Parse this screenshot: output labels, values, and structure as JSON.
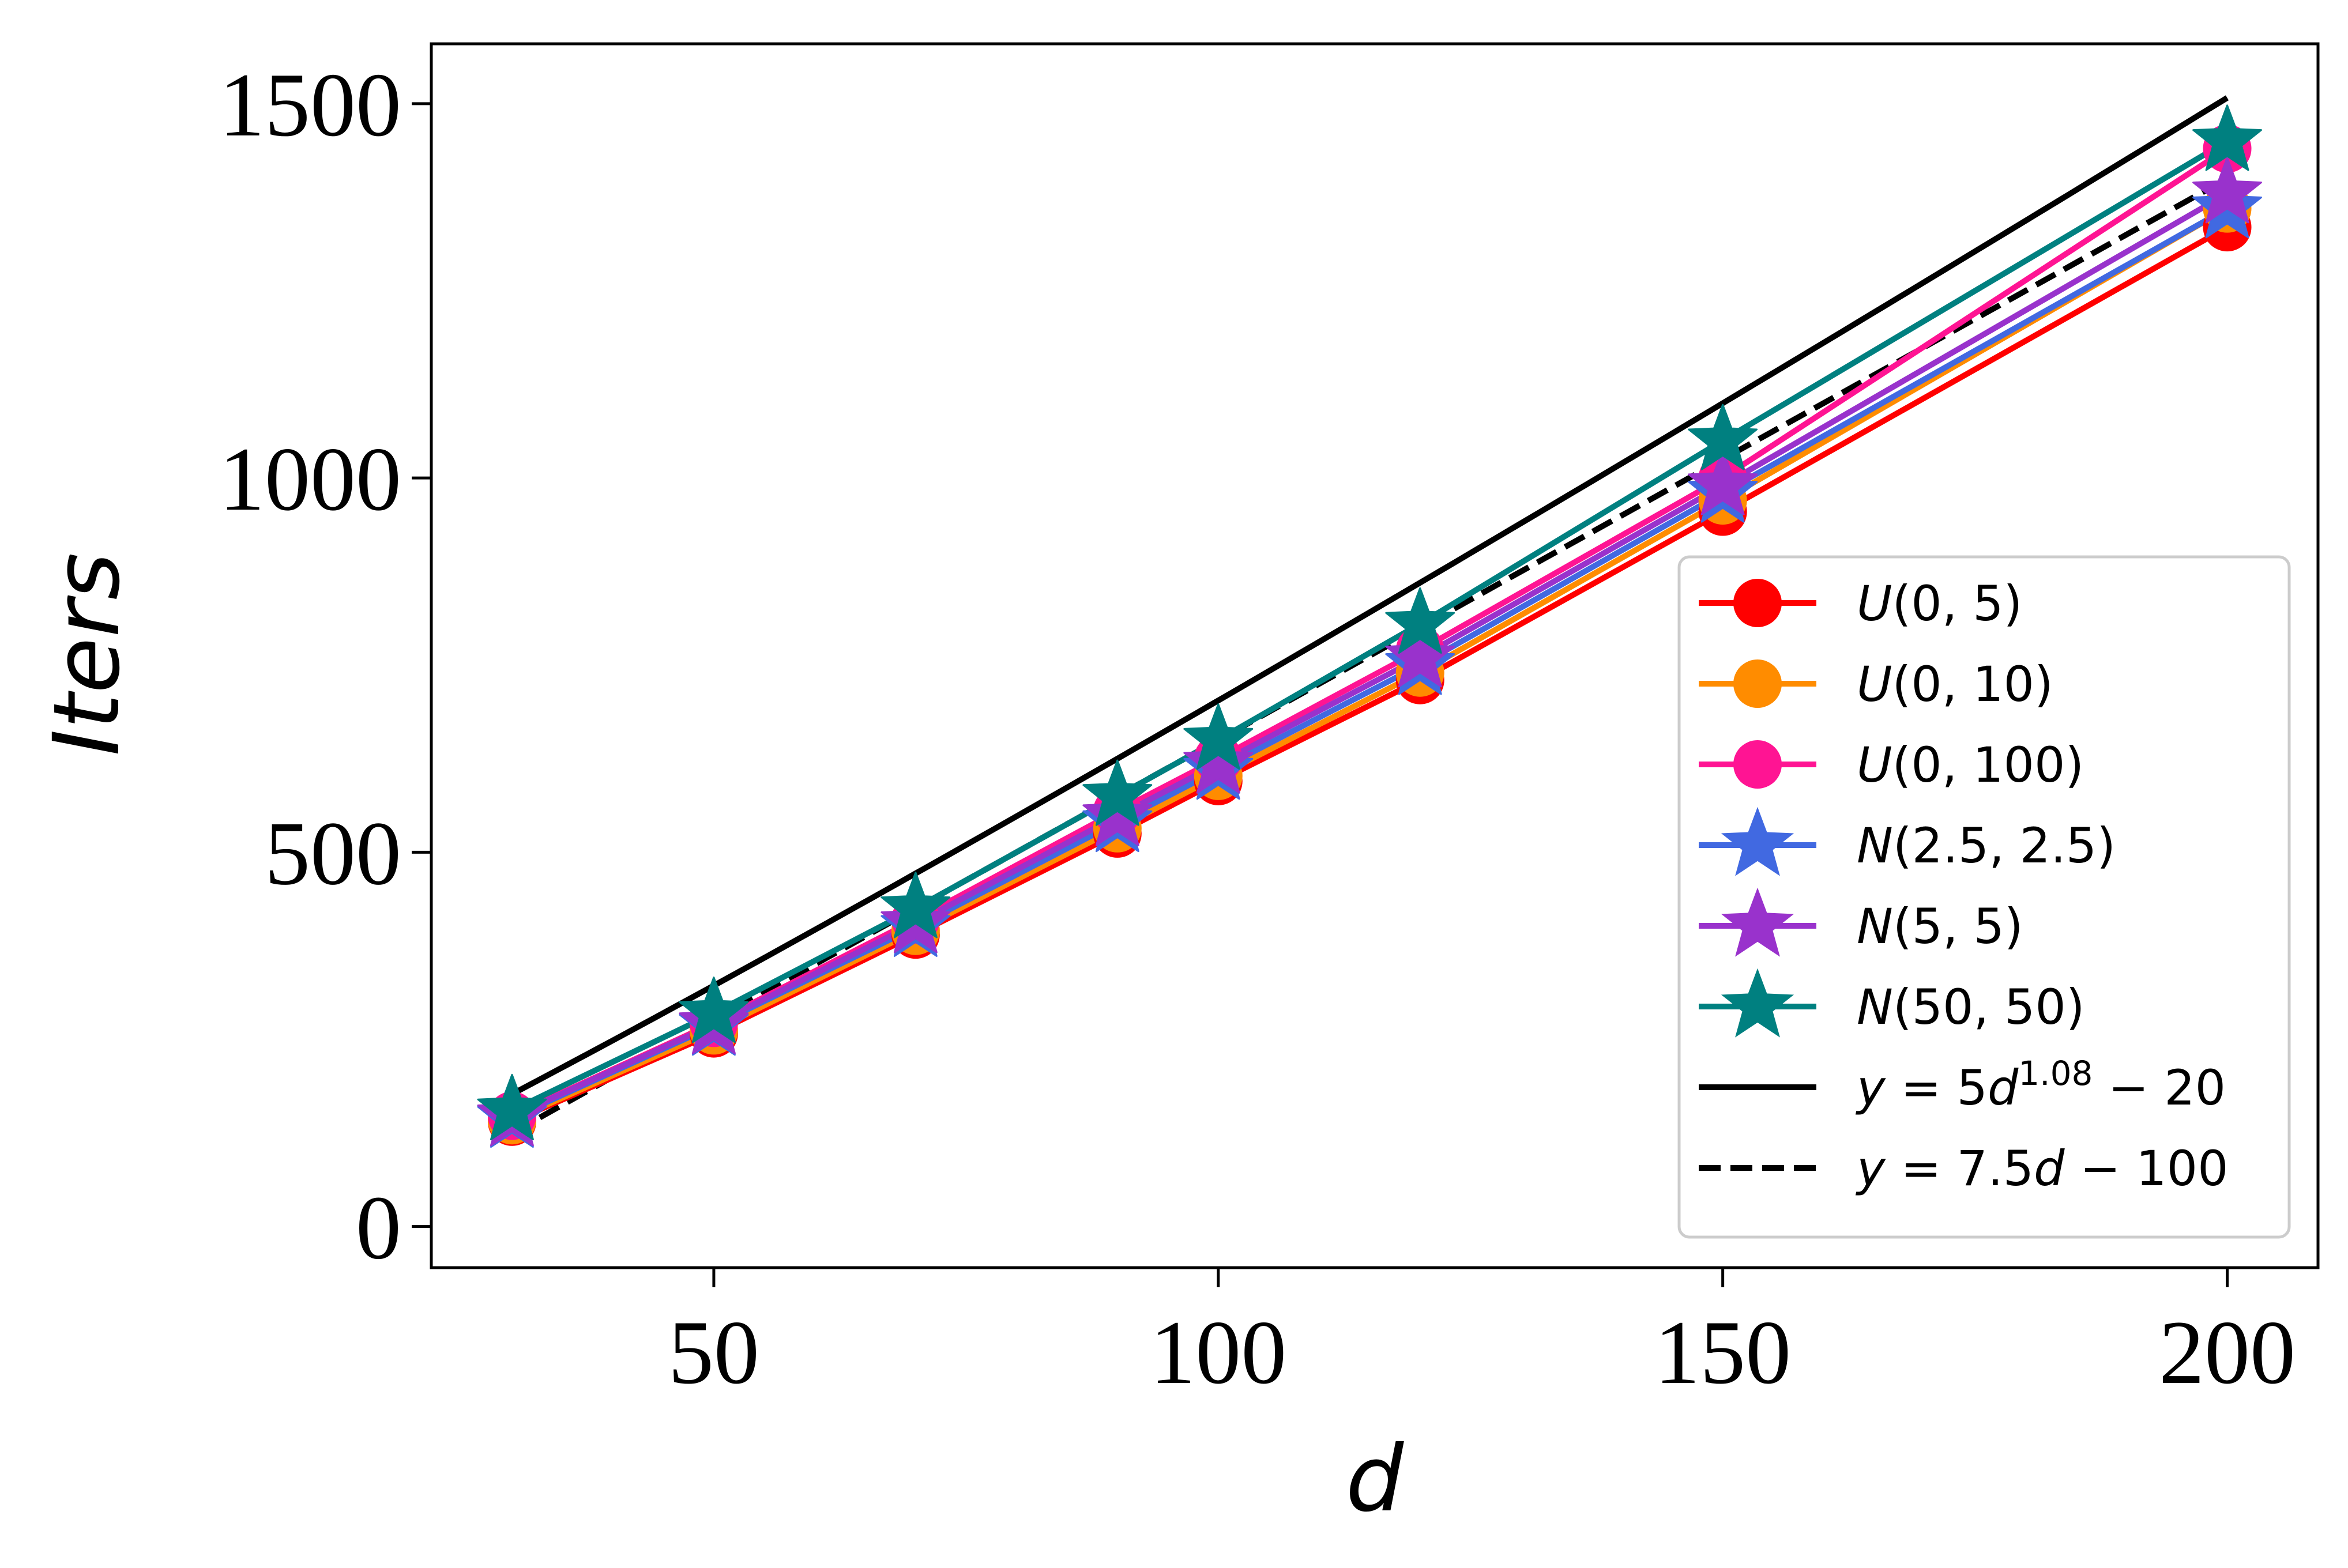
{
  "chart_data": {
    "type": "line",
    "xlabel": "d",
    "ylabel": "Iters",
    "xlim": [
      22,
      209
    ],
    "ylim": [
      -55,
      1580
    ],
    "xticks": [
      50,
      100,
      150,
      200
    ],
    "yticks": [
      0,
      500,
      1000,
      1500
    ],
    "xtick_labels": [
      "50",
      "100",
      "150",
      "200"
    ],
    "ytick_labels": [
      "0",
      "500",
      "1000",
      "1500"
    ],
    "grid": false,
    "legend_position": "lower-right",
    "x": [
      30,
      50,
      70,
      90,
      100,
      120,
      150,
      200
    ],
    "series": [
      {
        "name": "U(0, 5)",
        "color": "#ff0000",
        "marker": "circle",
        "values": [
          140,
          258,
          390,
          525,
          595,
          730,
          955,
          1335
        ]
      },
      {
        "name": "U(0, 10)",
        "color": "#ff8c00",
        "marker": "circle",
        "values": [
          142,
          262,
          395,
          532,
          602,
          740,
          970,
          1360
        ]
      },
      {
        "name": "U(0, 100)",
        "color": "#ff1493",
        "marker": "circle",
        "values": [
          148,
          272,
          410,
          555,
          625,
          770,
          1000,
          1440
        ]
      },
      {
        "name": "N(2.5, 2.5)",
        "color": "#4169e1",
        "marker": "star",
        "values": [
          145,
          268,
          400,
          540,
          610,
          750,
          980,
          1360
        ]
      },
      {
        "name": "N(5, 5)",
        "color": "#9932cc",
        "marker": "star",
        "values": [
          147,
          270,
          405,
          548,
          618,
          760,
          990,
          1380
        ]
      },
      {
        "name": "N(50, 50)",
        "color": "#008080",
        "marker": "star",
        "values": [
          155,
          285,
          425,
          575,
          650,
          805,
          1050,
          1450
        ]
      }
    ],
    "reference_lines": [
      {
        "name": "y = 5d^1.08 − 20",
        "color": "#000000",
        "style": "solid",
        "formula": "5*d^1.08-20",
        "x_range": [
          30,
          200
        ]
      },
      {
        "name": "y = 7.5d − 100",
        "color": "#000000",
        "style": "dashed",
        "formula": "7.5*d-100",
        "x_range": [
          30,
          200
        ]
      }
    ]
  }
}
